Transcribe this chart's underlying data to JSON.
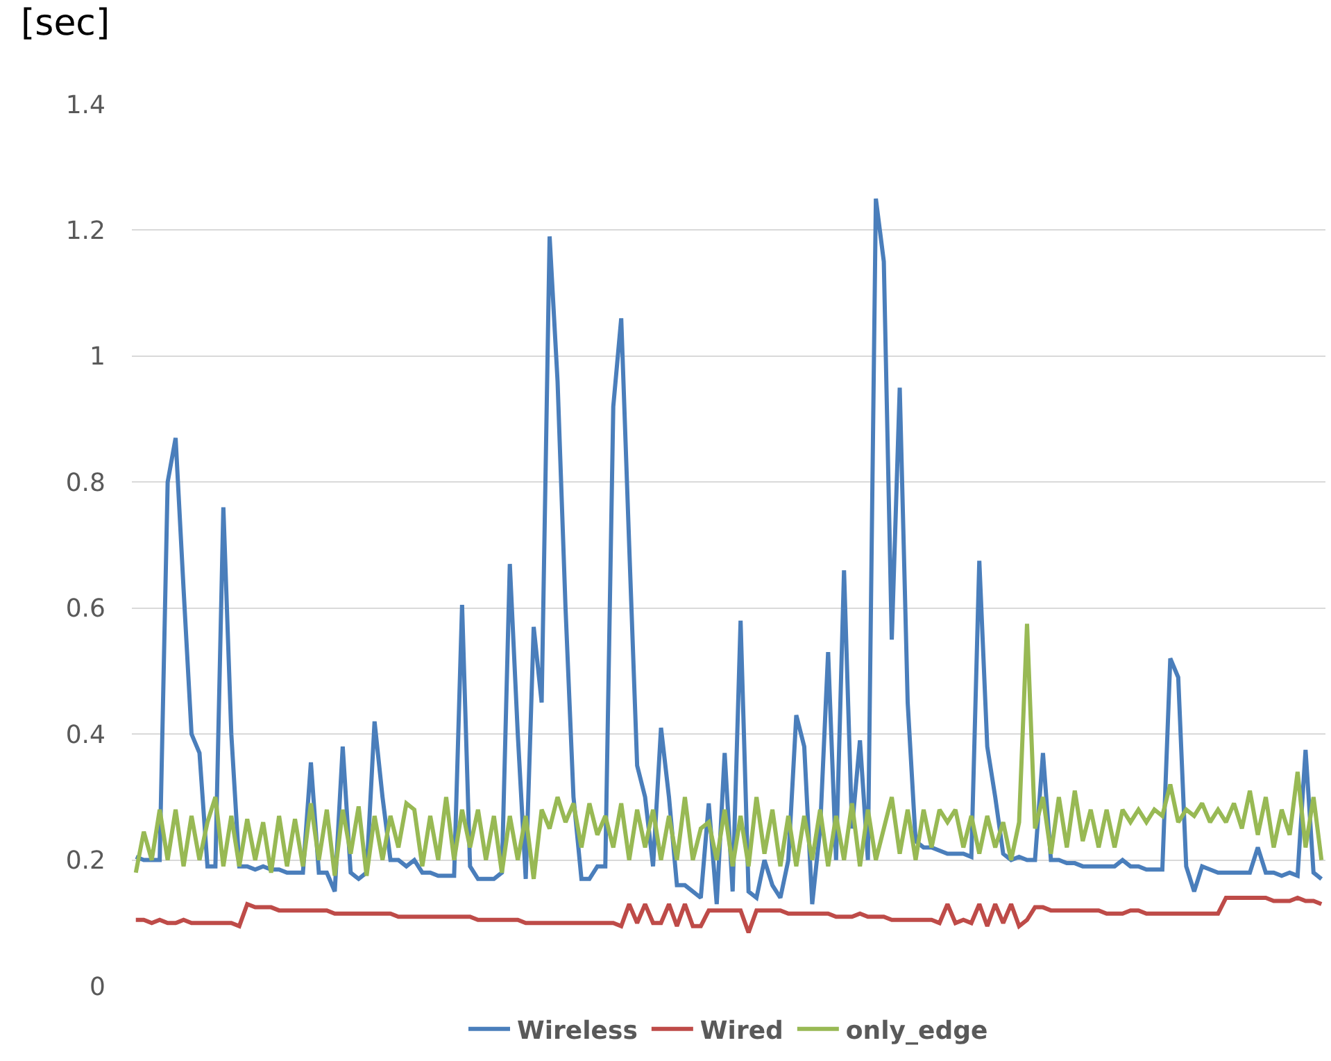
{
  "chart_data": {
    "type": "line",
    "ylabel": "[sec]",
    "categories": [
      null,
      null,
      null,
      null,
      null,
      null,
      null,
      null,
      null,
      null,
      null,
      null,
      null,
      null,
      null,
      null,
      null,
      null,
      null,
      null,
      null,
      null,
      null,
      null,
      null,
      null,
      null,
      null,
      null,
      null,
      null,
      null,
      null,
      null,
      null,
      null,
      null,
      null,
      null,
      null,
      null,
      null,
      null,
      null,
      null,
      null,
      null,
      null,
      null,
      null,
      null,
      null,
      null,
      null,
      null,
      null,
      null,
      null,
      null,
      null,
      null,
      null,
      null,
      null,
      null,
      null,
      null,
      null,
      null,
      null,
      null,
      null,
      null,
      null,
      null,
      null,
      null,
      null,
      null,
      null,
      null,
      null,
      null,
      null,
      null,
      null,
      null,
      null,
      null,
      null,
      null,
      null,
      null,
      null,
      null,
      null,
      null,
      null,
      null,
      null,
      null,
      null,
      null,
      null,
      null,
      null,
      null,
      null,
      null,
      null,
      null,
      null,
      null,
      null,
      null,
      null,
      null,
      null,
      null,
      null,
      null,
      null,
      null,
      null,
      null,
      null,
      null,
      null,
      null,
      null,
      null,
      null,
      null,
      null,
      null,
      null,
      null,
      null,
      null,
      null,
      null,
      null,
      null,
      null,
      null,
      null,
      null,
      null,
      null,
      null
    ],
    "series": [
      {
        "name": "Wireless",
        "color": "#4a7ebb",
        "values": [
          0.205,
          0.2,
          0.2,
          0.2,
          0.8,
          0.87,
          0.63,
          0.4,
          0.37,
          0.19,
          0.19,
          0.76,
          0.4,
          0.19,
          0.19,
          0.185,
          0.19,
          0.185,
          0.185,
          0.18,
          0.18,
          0.18,
          0.355,
          0.18,
          0.18,
          0.15,
          0.38,
          0.18,
          0.17,
          0.18,
          0.42,
          0.3,
          0.2,
          0.2,
          0.19,
          0.2,
          0.18,
          0.18,
          0.175,
          0.175,
          0.175,
          0.605,
          0.19,
          0.17,
          0.17,
          0.17,
          0.18,
          0.67,
          0.4,
          0.17,
          0.57,
          0.45,
          1.19,
          0.96,
          0.6,
          0.3,
          0.17,
          0.17,
          0.19,
          0.19,
          0.92,
          1.06,
          0.7,
          0.35,
          0.3,
          0.19,
          0.41,
          0.3,
          0.16,
          0.16,
          0.15,
          0.14,
          0.29,
          0.13,
          0.37,
          0.15,
          0.58,
          0.15,
          0.14,
          0.2,
          0.16,
          0.14,
          0.2,
          0.43,
          0.38,
          0.13,
          0.25,
          0.53,
          0.2,
          0.66,
          0.25,
          0.39,
          0.2,
          1.25,
          1.15,
          0.55,
          0.95,
          0.45,
          0.23,
          0.22,
          0.22,
          0.215,
          0.21,
          0.21,
          0.21,
          0.205,
          0.675,
          0.38,
          0.3,
          0.21,
          0.2,
          0.205,
          0.2,
          0.2,
          0.37,
          0.2,
          0.2,
          0.195,
          0.195,
          0.19,
          0.19,
          0.19,
          0.19,
          0.19,
          0.2,
          0.19,
          0.19,
          0.185,
          0.185,
          0.185,
          0.52,
          0.49,
          0.19,
          0.15,
          0.19,
          0.185,
          0.18,
          0.18,
          0.18,
          0.18,
          0.18,
          0.22,
          0.18,
          0.18,
          0.175,
          0.18,
          0.175,
          0.375,
          0.18,
          0.17
        ]
      },
      {
        "name": "Wired",
        "color": "#be4b48",
        "values": [
          0.105,
          0.105,
          0.1,
          0.105,
          0.1,
          0.1,
          0.105,
          0.1,
          0.1,
          0.1,
          0.1,
          0.1,
          0.1,
          0.095,
          0.13,
          0.125,
          0.125,
          0.125,
          0.12,
          0.12,
          0.12,
          0.12,
          0.12,
          0.12,
          0.12,
          0.115,
          0.115,
          0.115,
          0.115,
          0.115,
          0.115,
          0.115,
          0.115,
          0.11,
          0.11,
          0.11,
          0.11,
          0.11,
          0.11,
          0.11,
          0.11,
          0.11,
          0.11,
          0.105,
          0.105,
          0.105,
          0.105,
          0.105,
          0.105,
          0.1,
          0.1,
          0.1,
          0.1,
          0.1,
          0.1,
          0.1,
          0.1,
          0.1,
          0.1,
          0.1,
          0.1,
          0.095,
          0.13,
          0.1,
          0.13,
          0.1,
          0.1,
          0.13,
          0.095,
          0.13,
          0.095,
          0.095,
          0.12,
          0.12,
          0.12,
          0.12,
          0.12,
          0.085,
          0.12,
          0.12,
          0.12,
          0.12,
          0.115,
          0.115,
          0.115,
          0.115,
          0.115,
          0.115,
          0.11,
          0.11,
          0.11,
          0.115,
          0.11,
          0.11,
          0.11,
          0.105,
          0.105,
          0.105,
          0.105,
          0.105,
          0.105,
          0.1,
          0.13,
          0.1,
          0.105,
          0.1,
          0.13,
          0.095,
          0.13,
          0.1,
          0.13,
          0.095,
          0.105,
          0.125,
          0.125,
          0.12,
          0.12,
          0.12,
          0.12,
          0.12,
          0.12,
          0.12,
          0.115,
          0.115,
          0.115,
          0.12,
          0.12,
          0.115,
          0.115,
          0.115,
          0.115,
          0.115,
          0.115,
          0.115,
          0.115,
          0.115,
          0.115,
          0.14,
          0.14,
          0.14,
          0.14,
          0.14,
          0.14,
          0.135,
          0.135,
          0.135,
          0.14,
          0.135,
          0.135,
          0.13
        ]
      },
      {
        "name": "only_edge",
        "color": "#98b954",
        "values": [
          0.18,
          0.245,
          0.2,
          0.28,
          0.2,
          0.28,
          0.19,
          0.27,
          0.2,
          0.26,
          0.3,
          0.19,
          0.27,
          0.19,
          0.265,
          0.2,
          0.26,
          0.18,
          0.27,
          0.19,
          0.265,
          0.19,
          0.29,
          0.2,
          0.28,
          0.175,
          0.28,
          0.21,
          0.285,
          0.175,
          0.27,
          0.2,
          0.27,
          0.22,
          0.29,
          0.28,
          0.19,
          0.27,
          0.2,
          0.3,
          0.2,
          0.28,
          0.22,
          0.28,
          0.2,
          0.27,
          0.18,
          0.27,
          0.2,
          0.27,
          0.17,
          0.28,
          0.25,
          0.3,
          0.26,
          0.29,
          0.22,
          0.29,
          0.24,
          0.27,
          0.22,
          0.29,
          0.2,
          0.28,
          0.22,
          0.28,
          0.2,
          0.27,
          0.2,
          0.3,
          0.2,
          0.25,
          0.26,
          0.2,
          0.28,
          0.19,
          0.27,
          0.19,
          0.3,
          0.21,
          0.28,
          0.19,
          0.27,
          0.19,
          0.27,
          0.2,
          0.28,
          0.19,
          0.27,
          0.2,
          0.29,
          0.19,
          0.28,
          0.2,
          0.25,
          0.3,
          0.21,
          0.28,
          0.2,
          0.28,
          0.22,
          0.28,
          0.26,
          0.28,
          0.22,
          0.27,
          0.21,
          0.27,
          0.22,
          0.26,
          0.2,
          0.26,
          0.575,
          0.25,
          0.3,
          0.21,
          0.3,
          0.22,
          0.31,
          0.23,
          0.28,
          0.22,
          0.28,
          0.22,
          0.28,
          0.26,
          0.28,
          0.26,
          0.28,
          0.27,
          0.32,
          0.26,
          0.28,
          0.27,
          0.29,
          0.26,
          0.28,
          0.26,
          0.29,
          0.25,
          0.31,
          0.24,
          0.3,
          0.22,
          0.28,
          0.24,
          0.34,
          0.22,
          0.3,
          0.2
        ]
      }
    ],
    "ylim": [
      0,
      1.4
    ],
    "yticks": [
      0,
      0.2,
      0.4,
      0.6,
      0.8,
      1,
      1.2,
      1.4
    ],
    "grid": "y",
    "legend": "bottom",
    "tick_labels": "y",
    "marker": "none",
    "line_style": "solid"
  }
}
